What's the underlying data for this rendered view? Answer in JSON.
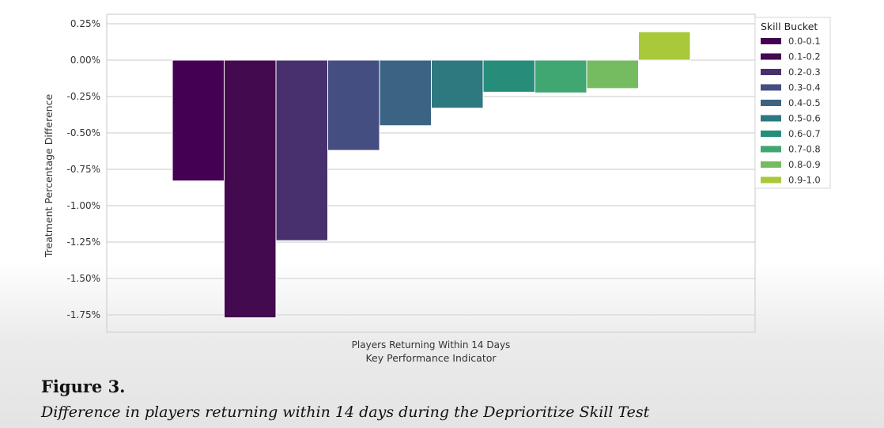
{
  "chart_data": {
    "type": "bar",
    "title": "",
    "xlabel": "Key Performance Indicator",
    "ylabel": "Treatment Percentage Difference",
    "categories": [
      "Players Returning Within 14 Days"
    ],
    "yticks": [
      "0.25%",
      "0.00%",
      "-0.25%",
      "-0.50%",
      "-0.75%",
      "-1.00%",
      "-1.25%",
      "-1.50%",
      "-1.75%"
    ],
    "ytick_values": [
      0.25,
      0,
      -0.25,
      -0.5,
      -0.75,
      -1.0,
      -1.25,
      -1.5,
      -1.75
    ],
    "ylim": [
      -1.85,
      0.3
    ],
    "grid": true,
    "legend": {
      "title": "Skill Bucket",
      "placement": "right"
    },
    "series": [
      {
        "name": "0.0-0.1",
        "values": [
          -0.83
        ],
        "color": "#440154"
      },
      {
        "name": "0.1-0.2",
        "values": [
          -1.77
        ],
        "color": "#440a50"
      },
      {
        "name": "0.2-0.3",
        "values": [
          -1.24
        ],
        "color": "#48306e"
      },
      {
        "name": "0.3-0.4",
        "values": [
          -0.62
        ],
        "color": "#454e80"
      },
      {
        "name": "0.4-0.5",
        "values": [
          -0.45
        ],
        "color": "#3b6383"
      },
      {
        "name": "0.5-0.6",
        "values": [
          -0.33
        ],
        "color": "#2e7880"
      },
      {
        "name": "0.6-0.7",
        "values": [
          -0.22
        ],
        "color": "#268d7b"
      },
      {
        "name": "0.7-0.8",
        "values": [
          -0.225
        ],
        "color": "#40a672"
      },
      {
        "name": "0.8-0.9",
        "values": [
          -0.195
        ],
        "color": "#74bc5f"
      },
      {
        "name": "0.9-1.0",
        "values": [
          0.195
        ],
        "color": "#a9c83a"
      }
    ]
  },
  "caption": {
    "label": "Figure 3.",
    "text": "Difference in players returning within 14 days during the Deprioritize Skill Test"
  }
}
